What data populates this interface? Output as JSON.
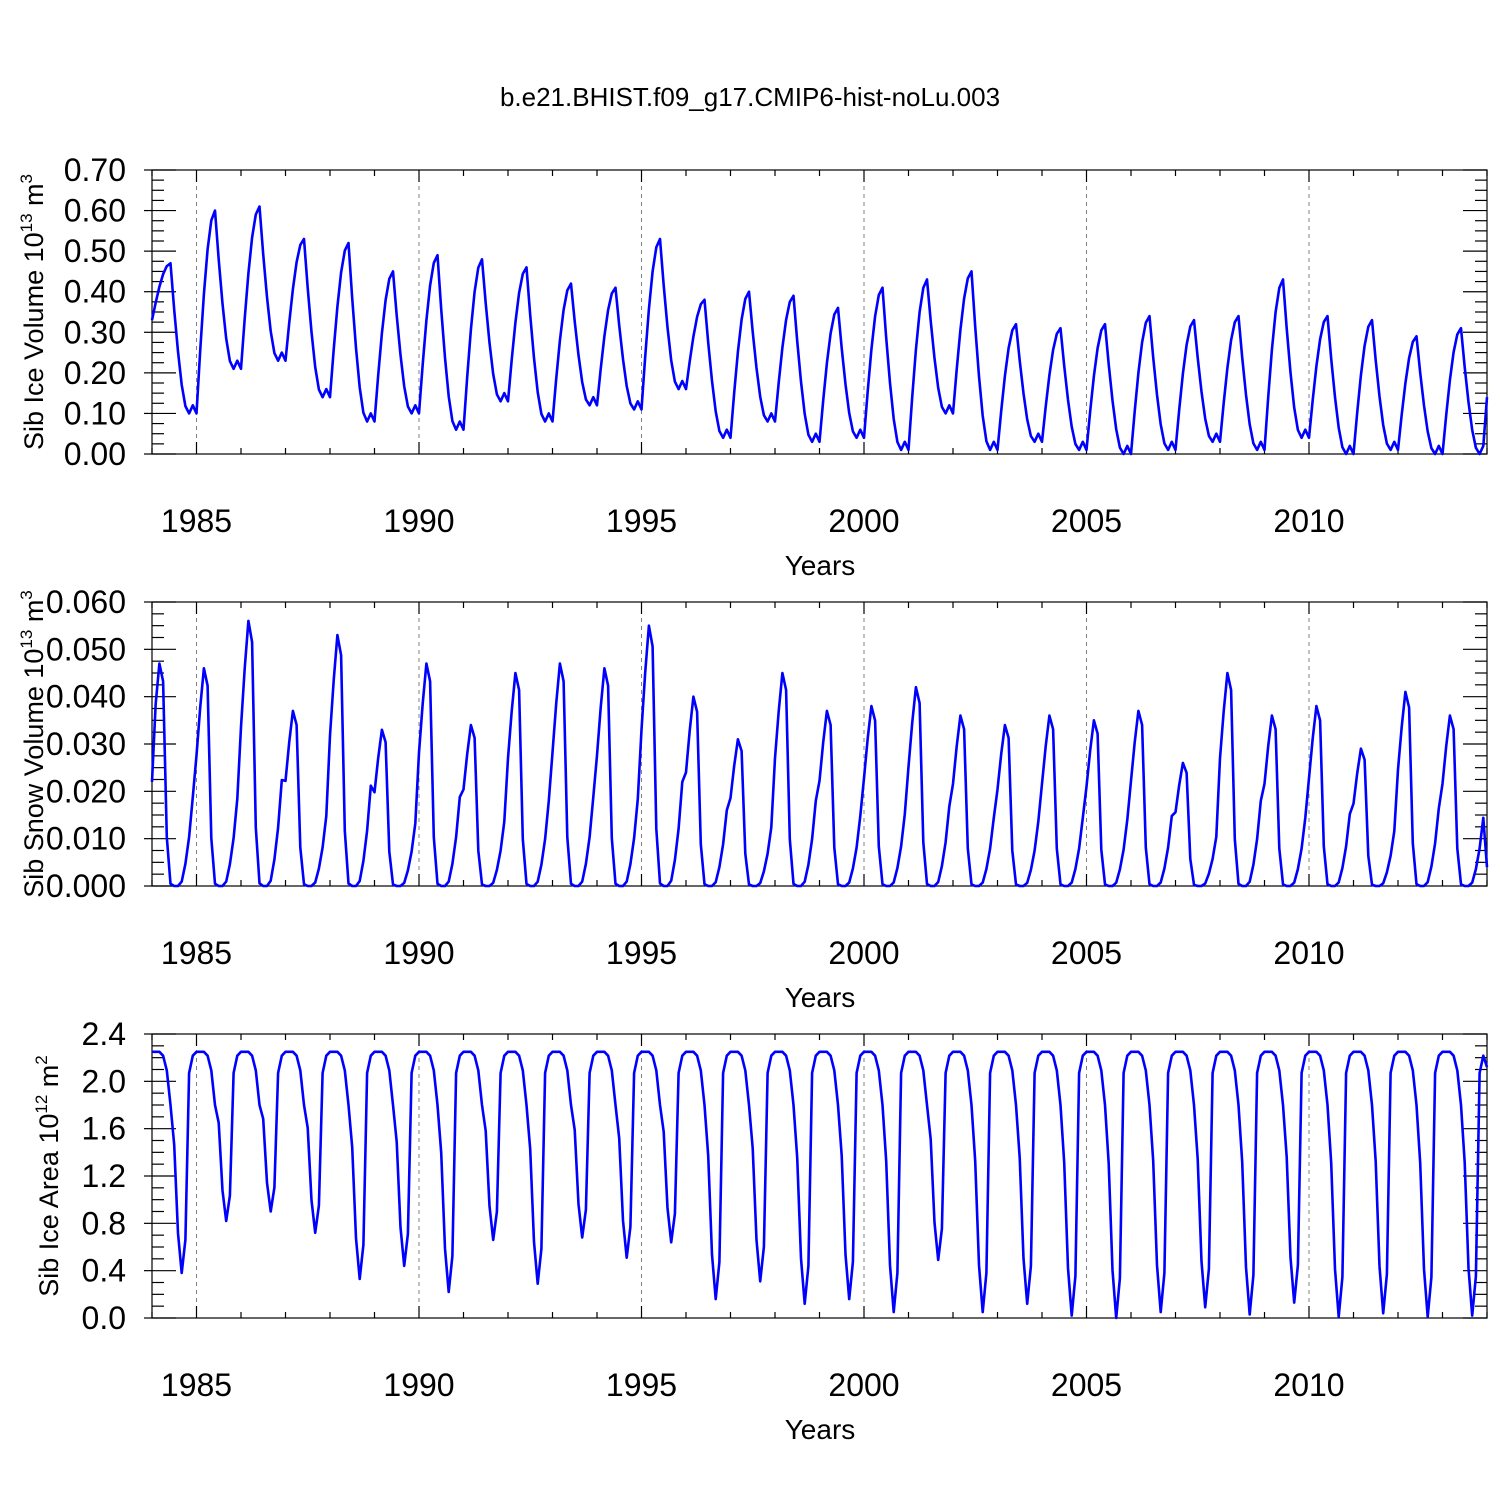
{
  "title": "b.e21.BHIST.f09_g17.CMIP6-hist-noLu.003",
  "colors": {
    "line": "#0000ff",
    "grid": "#808080",
    "axis": "#000000"
  },
  "chart_data": [
    {
      "type": "line",
      "name": "ice-volume",
      "ylabel": "Sib Ice Volume 10",
      "ylabel_exponent": "13",
      "ylabel_unit": "m",
      "ylabel_unit_exponent": "3",
      "xlabel": "Years",
      "xlim": [
        1984.0,
        2014.0
      ],
      "ylim": [
        0.0,
        0.7
      ],
      "x_ticks": [
        1985,
        1990,
        1995,
        2000,
        2005,
        2010
      ],
      "x_tick_labels": [
        "1985",
        "1990",
        "1995",
        "2000",
        "2005",
        "2010"
      ],
      "y_ticks": [
        0.0,
        0.1,
        0.2,
        0.3,
        0.4,
        0.5,
        0.6,
        0.7
      ],
      "y_tick_labels": [
        "0.00",
        "0.10",
        "0.20",
        "0.30",
        "0.40",
        "0.50",
        "0.60",
        "0.70"
      ],
      "grid": "dashed vertical at major x ticks",
      "series": [
        {
          "name": "Sib Ice Volume",
          "start_year": 1984.0,
          "step_years": 0.0833333,
          "annual_max": [
            0.47,
            0.6,
            0.61,
            0.53,
            0.52,
            0.45,
            0.49,
            0.48,
            0.46,
            0.42,
            0.41,
            0.53,
            0.38,
            0.4,
            0.39,
            0.36,
            0.41,
            0.43,
            0.45,
            0.32,
            0.31,
            0.32,
            0.34,
            0.33,
            0.34,
            0.43,
            0.34,
            0.33,
            0.29,
            0.31
          ],
          "annual_min": [
            0.1,
            0.21,
            0.23,
            0.14,
            0.08,
            0.1,
            0.06,
            0.13,
            0.08,
            0.12,
            0.11,
            0.16,
            0.04,
            0.08,
            0.03,
            0.04,
            0.01,
            0.1,
            0.01,
            0.03,
            0.01,
            0.0,
            0.01,
            0.03,
            0.01,
            0.04,
            0.0,
            0.01,
            0.0,
            0.0
          ],
          "end_value": 0.14
        }
      ]
    },
    {
      "type": "line",
      "name": "snow-volume",
      "ylabel": "Sib Snow Volume 10",
      "ylabel_exponent": "13",
      "ylabel_unit": "m",
      "ylabel_unit_exponent": "3",
      "xlabel": "Years",
      "xlim": [
        1984.0,
        2014.0
      ],
      "ylim": [
        0.0,
        0.06
      ],
      "x_ticks": [
        1985,
        1990,
        1995,
        2000,
        2005,
        2010
      ],
      "x_tick_labels": [
        "1985",
        "1990",
        "1995",
        "2000",
        "2005",
        "2010"
      ],
      "y_ticks": [
        0.0,
        0.01,
        0.02,
        0.03,
        0.04,
        0.05,
        0.06
      ],
      "y_tick_labels": [
        "0.000",
        "0.010",
        "0.020",
        "0.030",
        "0.040",
        "0.050",
        "0.060"
      ],
      "grid": "dashed vertical at major x ticks",
      "series": [
        {
          "name": "Sib Snow Volume",
          "start_year": 1984.0,
          "step_years": 0.0833333,
          "start_value": 0.022,
          "annual_max": [
            0.047,
            0.046,
            0.056,
            0.037,
            0.053,
            0.033,
            0.047,
            0.034,
            0.045,
            0.047,
            0.046,
            0.055,
            0.04,
            0.031,
            0.045,
            0.037,
            0.038,
            0.042,
            0.036,
            0.034,
            0.036,
            0.035,
            0.037,
            0.026,
            0.045,
            0.036,
            0.038,
            0.029,
            0.041,
            0.036
          ],
          "end_value": 0.004
        }
      ]
    },
    {
      "type": "line",
      "name": "ice-area",
      "ylabel": "Sib Ice Area 10",
      "ylabel_exponent": "12",
      "ylabel_unit": "m",
      "ylabel_unit_exponent": "2",
      "xlabel": "Years",
      "xlim": [
        1984.0,
        2014.0
      ],
      "ylim": [
        0.0,
        2.4
      ],
      "x_ticks": [
        1985,
        1990,
        1995,
        2000,
        2005,
        2010
      ],
      "x_tick_labels": [
        "1985",
        "1990",
        "1995",
        "2000",
        "2005",
        "2010"
      ],
      "y_ticks": [
        0.0,
        0.4,
        0.8,
        1.2,
        1.6,
        2.0,
        2.4
      ],
      "y_tick_labels": [
        "0.0",
        "0.4",
        "0.8",
        "1.2",
        "1.6",
        "2.0",
        "2.4"
      ],
      "grid": "dashed vertical at major x ticks",
      "series": [
        {
          "name": "Sib Ice Area",
          "start_year": 1984.0,
          "step_years": 0.0833333,
          "annual_max": 2.25,
          "annual_min": [
            0.38,
            0.82,
            0.9,
            0.72,
            0.33,
            0.44,
            0.22,
            0.66,
            0.29,
            0.68,
            0.51,
            0.64,
            0.16,
            0.31,
            0.12,
            0.16,
            0.05,
            0.49,
            0.05,
            0.12,
            0.02,
            0.0,
            0.05,
            0.09,
            0.03,
            0.13,
            0.01,
            0.04,
            0.01,
            0.02
          ],
          "end_value": 2.12
        }
      ]
    }
  ]
}
